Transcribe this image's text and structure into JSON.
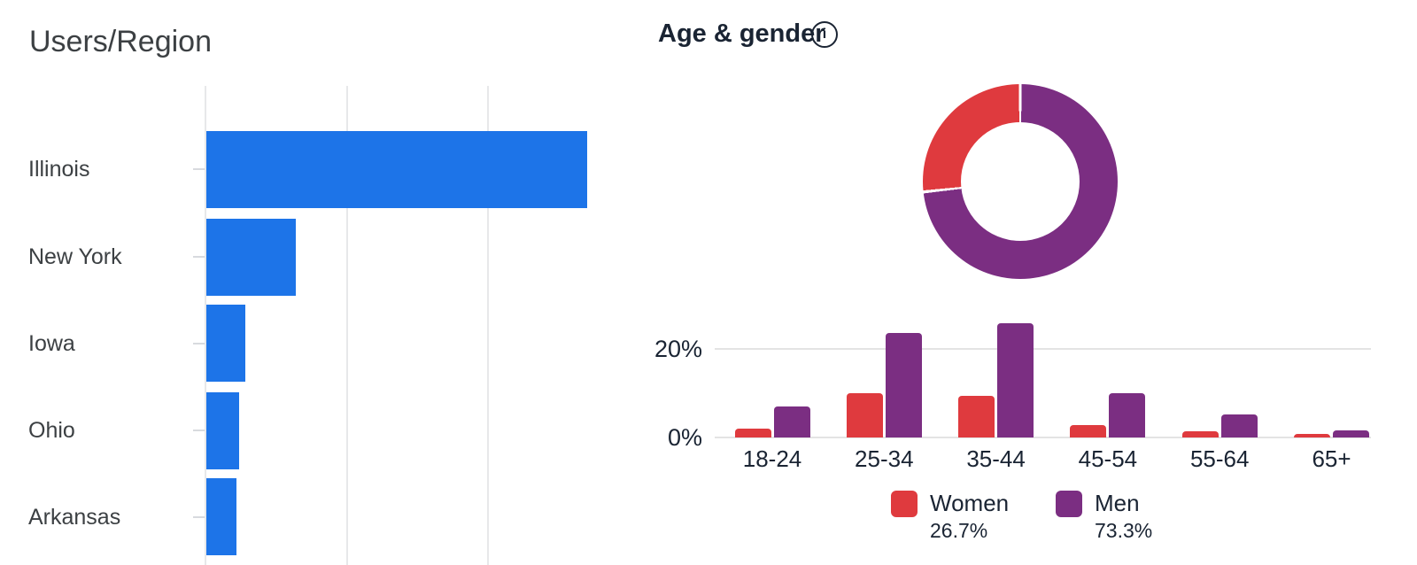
{
  "chart_data": [
    {
      "type": "bar",
      "orientation": "horizontal",
      "title": "Users/Region",
      "categories": [
        "Illinois",
        "New York",
        "Iowa",
        "Ohio",
        "Arkansas"
      ],
      "values_pct_of_max": [
        100,
        23.4,
        10.3,
        8.7,
        8.0
      ],
      "bar_color": "#1d74e8",
      "grid": true,
      "value_axis_labels_visible": false
    },
    {
      "type": "donut+grouped-bar",
      "title": "Age & gender",
      "info_icon_glyph": "i",
      "donut": {
        "type": "pie",
        "start": "top",
        "direction": "clockwise",
        "segments": [
          {
            "label": "Men",
            "value_pct": 73.3,
            "color": "#7b2e82"
          },
          {
            "label": "Women",
            "value_pct": 26.7,
            "color": "#df3a3e"
          }
        ]
      },
      "bars": {
        "type": "bar",
        "categories": [
          "18-24",
          "25-34",
          "35-44",
          "45-54",
          "55-64",
          "65+"
        ],
        "series": [
          {
            "name": "Women",
            "color": "#df3a3e",
            "values_pct": [
              2.0,
              10.0,
              9.5,
              2.8,
              1.5,
              0.9
            ]
          },
          {
            "name": "Men",
            "color": "#7b2e82",
            "values_pct": [
              7.0,
              23.6,
              25.9,
              10.0,
              5.2,
              1.6
            ]
          }
        ],
        "y_ticks": [
          {
            "label": "20%",
            "value": 20
          },
          {
            "label": "0%",
            "value": 0
          }
        ],
        "ylim": [
          0,
          28
        ],
        "grid": true
      },
      "legend": [
        {
          "label": "Women",
          "value": "26.7%",
          "color": "#df3a3e"
        },
        {
          "label": "Men",
          "value": "73.3%",
          "color": "#7b2e82"
        }
      ]
    }
  ]
}
